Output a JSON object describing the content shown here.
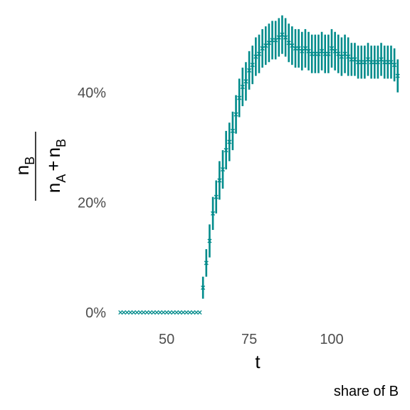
{
  "chart_data": {
    "type": "scatter",
    "title": "",
    "caption": "share of B",
    "xlabel": "t",
    "ylabel": {
      "numerator": {
        "base": "n",
        "sub": "B"
      },
      "denominator": [
        {
          "base": "n",
          "sub": "A"
        },
        {
          "op": "+"
        },
        {
          "base": "n",
          "sub": "B"
        }
      ]
    },
    "xlim": [
      34,
      122
    ],
    "ylim": [
      -0.035,
      0.555
    ],
    "x_ticks": [
      50,
      75,
      100
    ],
    "x_tick_labels": [
      "50",
      "75",
      "100"
    ],
    "y_ticks": [
      0,
      0.2,
      0.4
    ],
    "y_tick_labels": [
      "0%",
      "20%",
      "40%"
    ],
    "grid": false,
    "legend": "none",
    "color": "#008B8B",
    "marker": "x",
    "error_bars": true,
    "series": [
      {
        "x": [
          36,
          37,
          38,
          39,
          40,
          41,
          42,
          43,
          44,
          45,
          46,
          47,
          48,
          49,
          50,
          51,
          52,
          53,
          54,
          55,
          56,
          57,
          58,
          59,
          60,
          61,
          62,
          63,
          64,
          65,
          66,
          67,
          68,
          69,
          70,
          71,
          72,
          73,
          74,
          75,
          76,
          77,
          78,
          79,
          80,
          81,
          82,
          83,
          84,
          85,
          86,
          87,
          88,
          89,
          90,
          91,
          92,
          93,
          94,
          95,
          96,
          97,
          98,
          99,
          100,
          101,
          102,
          103,
          104,
          105,
          106,
          107,
          108,
          109,
          110,
          111,
          112,
          113,
          114,
          115,
          116,
          117,
          118,
          119,
          120
        ],
        "y": [
          0,
          0,
          0,
          0,
          0,
          0,
          0,
          0,
          0,
          0,
          0,
          0,
          0,
          0,
          0,
          0,
          0,
          0,
          0,
          0,
          0,
          0,
          0,
          0,
          0,
          0.045,
          0.09,
          0.13,
          0.18,
          0.21,
          0.24,
          0.26,
          0.295,
          0.31,
          0.33,
          0.36,
          0.39,
          0.41,
          0.42,
          0.44,
          0.45,
          0.465,
          0.47,
          0.48,
          0.485,
          0.49,
          0.495,
          0.495,
          0.5,
          0.505,
          0.5,
          0.49,
          0.485,
          0.48,
          0.48,
          0.475,
          0.48,
          0.475,
          0.47,
          0.47,
          0.47,
          0.475,
          0.47,
          0.47,
          0.48,
          0.475,
          0.47,
          0.465,
          0.47,
          0.465,
          0.46,
          0.46,
          0.455,
          0.455,
          0.455,
          0.46,
          0.455,
          0.455,
          0.455,
          0.46,
          0.455,
          0.455,
          0.455,
          0.45,
          0.43
        ],
        "err": [
          0,
          0,
          0,
          0,
          0,
          0,
          0,
          0,
          0,
          0,
          0,
          0,
          0,
          0,
          0,
          0,
          0,
          0,
          0,
          0,
          0,
          0,
          0,
          0,
          0,
          0.02,
          0.025,
          0.03,
          0.03,
          0.03,
          0.035,
          0.035,
          0.035,
          0.035,
          0.035,
          0.035,
          0.035,
          0.035,
          0.035,
          0.035,
          0.035,
          0.035,
          0.035,
          0.035,
          0.035,
          0.035,
          0.035,
          0.035,
          0.035,
          0.035,
          0.035,
          0.035,
          0.035,
          0.035,
          0.035,
          0.035,
          0.035,
          0.035,
          0.035,
          0.035,
          0.035,
          0.035,
          0.035,
          0.035,
          0.035,
          0.035,
          0.035,
          0.035,
          0.035,
          0.035,
          0.03,
          0.03,
          0.03,
          0.03,
          0.03,
          0.03,
          0.03,
          0.03,
          0.03,
          0.03,
          0.03,
          0.03,
          0.03,
          0.03,
          0.03
        ]
      }
    ]
  }
}
